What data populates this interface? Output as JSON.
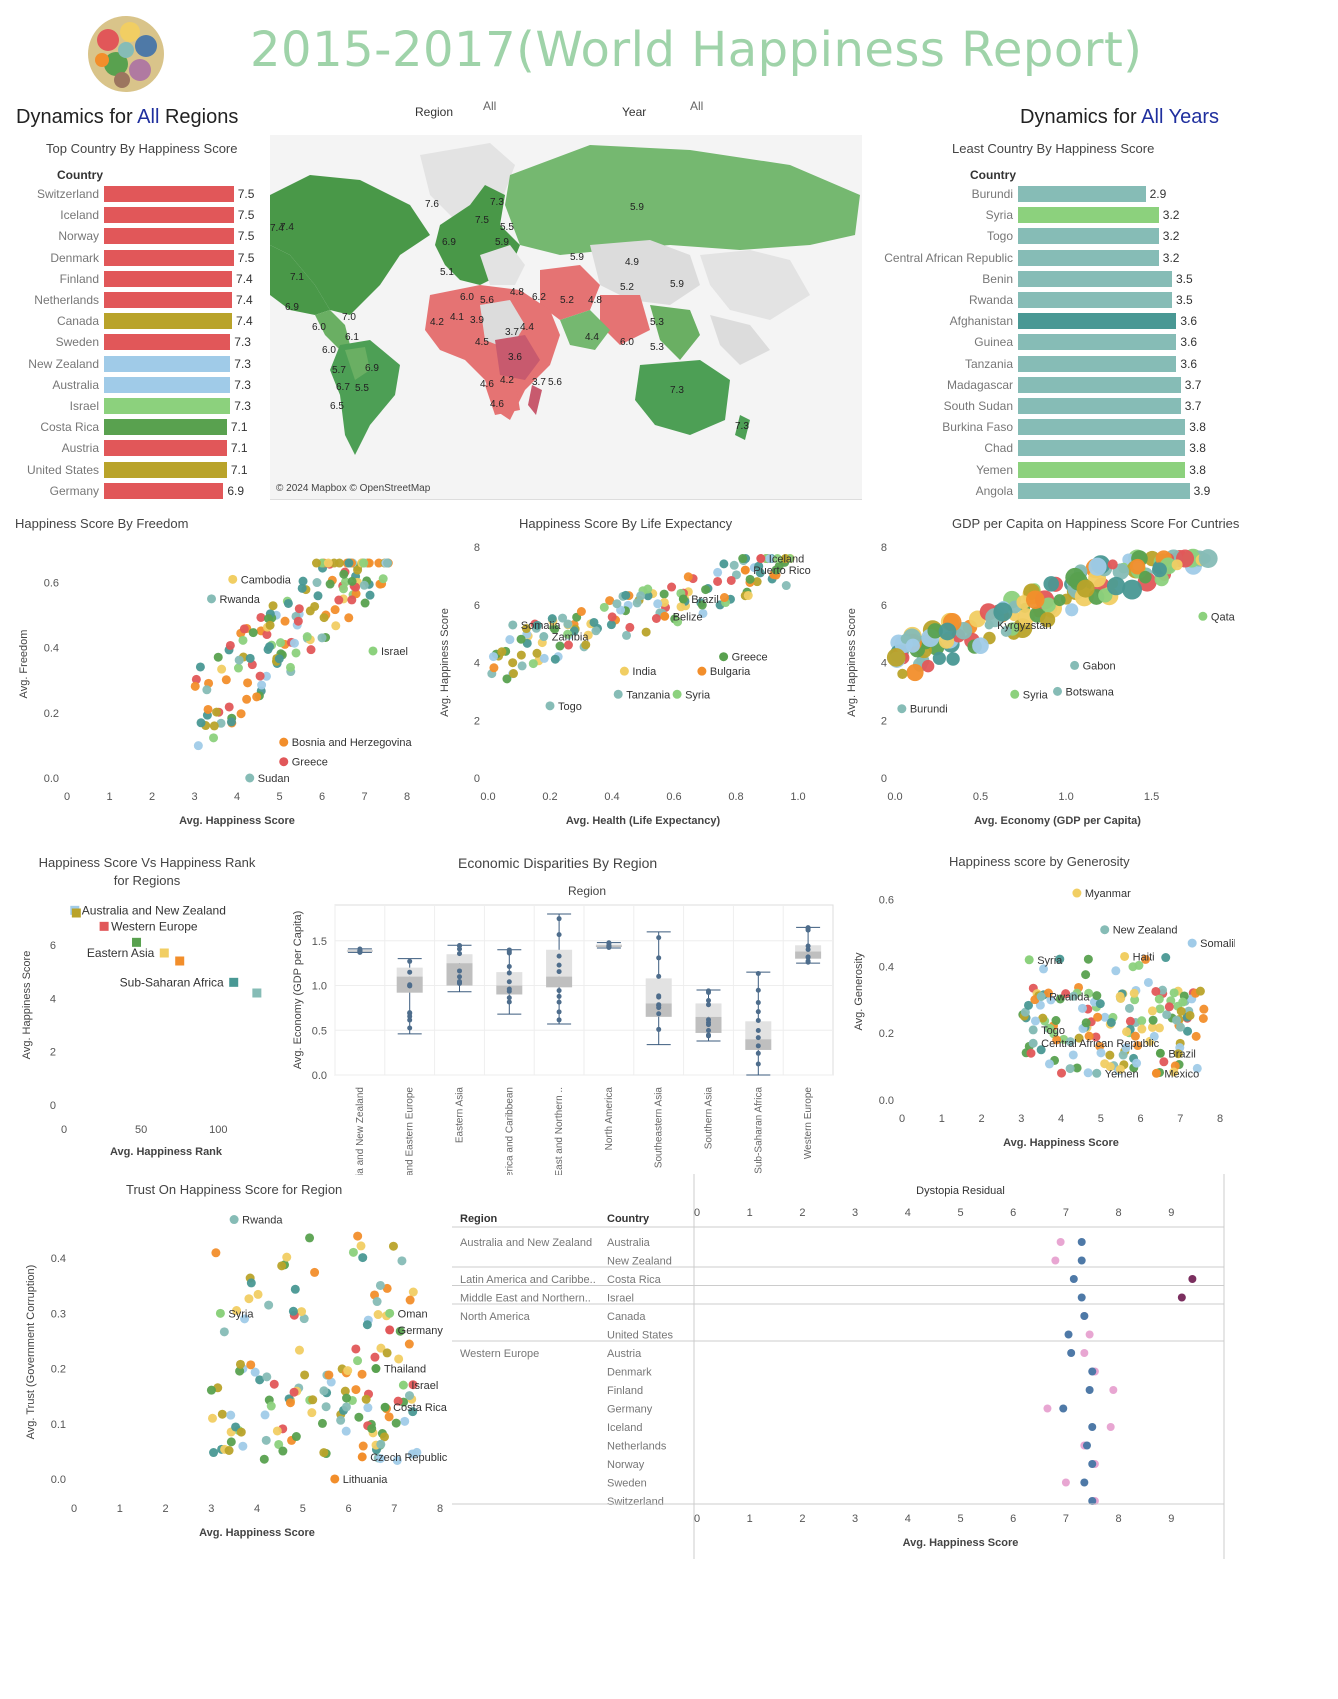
{
  "header": {
    "title": "2015-2017(World Happiness Report)",
    "left_heading_prefix": "Dynamics for ",
    "left_heading_highlight": "All",
    "left_heading_suffix": " Regions",
    "right_heading_prefix": "Dynamics for ",
    "right_heading_highlight": "All Years",
    "region_filter_label": "Region",
    "region_filter_value": "All",
    "year_filter_label": "Year",
    "year_filter_value": "All"
  },
  "colors": {
    "title": "#9fd3a9",
    "highlight": "#1f2f9e",
    "red": "#e15759",
    "gold": "#b9a32a",
    "lightblue": "#a0cbe8",
    "lightgreen": "#8cd17d",
    "green": "#59a14f",
    "teal": "#86bcb6",
    "darkteal": "#499894",
    "orange": "#f28e2b",
    "yellow": "#f1ce63",
    "darkgreen": "#499848"
  },
  "top_countries": {
    "title": "Top Country By Happiness Score",
    "column_header": "Country",
    "rows": [
      {
        "country": "Switzerland",
        "value": 7.5,
        "color": "#e15759"
      },
      {
        "country": "Iceland",
        "value": 7.5,
        "color": "#e15759"
      },
      {
        "country": "Norway",
        "value": 7.5,
        "color": "#e15759"
      },
      {
        "country": "Denmark",
        "value": 7.5,
        "color": "#e15759"
      },
      {
        "country": "Finland",
        "value": 7.4,
        "color": "#e15759"
      },
      {
        "country": "Netherlands",
        "value": 7.4,
        "color": "#e15759"
      },
      {
        "country": "Canada",
        "value": 7.4,
        "color": "#b9a32a"
      },
      {
        "country": "Sweden",
        "value": 7.3,
        "color": "#e15759"
      },
      {
        "country": "New Zealand",
        "value": 7.3,
        "color": "#a0cbe8"
      },
      {
        "country": "Australia",
        "value": 7.3,
        "color": "#a0cbe8"
      },
      {
        "country": "Israel",
        "value": 7.3,
        "color": "#8cd17d"
      },
      {
        "country": "Costa Rica",
        "value": 7.1,
        "color": "#59a14f"
      },
      {
        "country": "Austria",
        "value": 7.1,
        "color": "#e15759"
      },
      {
        "country": "United States",
        "value": 7.1,
        "color": "#b9a32a"
      },
      {
        "country": "Germany",
        "value": 6.9,
        "color": "#e15759"
      }
    ]
  },
  "least_countries": {
    "title": "Least Country By Happiness Score",
    "column_header": "Country",
    "rows": [
      {
        "country": "Burundi",
        "value": 2.9,
        "color": "#86bcb6"
      },
      {
        "country": "Syria",
        "value": 3.2,
        "color": "#8cd17d"
      },
      {
        "country": "Togo",
        "value": 3.2,
        "color": "#86bcb6"
      },
      {
        "country": "Central African Republic",
        "value": 3.2,
        "color": "#86bcb6"
      },
      {
        "country": "Benin",
        "value": 3.5,
        "color": "#86bcb6"
      },
      {
        "country": "Rwanda",
        "value": 3.5,
        "color": "#86bcb6"
      },
      {
        "country": "Afghanistan",
        "value": 3.6,
        "color": "#499894"
      },
      {
        "country": "Guinea",
        "value": 3.6,
        "color": "#86bcb6"
      },
      {
        "country": "Tanzania",
        "value": 3.6,
        "color": "#86bcb6"
      },
      {
        "country": "Madagascar",
        "value": 3.7,
        "color": "#86bcb6"
      },
      {
        "country": "South Sudan",
        "value": 3.7,
        "color": "#86bcb6"
      },
      {
        "country": "Burkina Faso",
        "value": 3.8,
        "color": "#86bcb6"
      },
      {
        "country": "Chad",
        "value": 3.8,
        "color": "#86bcb6"
      },
      {
        "country": "Yemen",
        "value": 3.8,
        "color": "#8cd17d"
      },
      {
        "country": "Angola",
        "value": 3.9,
        "color": "#86bcb6"
      }
    ]
  },
  "map": {
    "attribution": "© 2024 Mapbox © OpenStreetMap",
    "labels": [
      "5.9",
      "7.3",
      "7.4",
      "7.6",
      "7.5",
      "5.5",
      "6.9",
      "5.9",
      "5.9",
      "4.9",
      "5.2",
      "5.9",
      "7.1",
      "6.9",
      "5.1",
      "6.0",
      "5.6",
      "4.8",
      "6.2",
      "5.2",
      "4.8",
      "4.2",
      "4.1",
      "3.9",
      "3.7",
      "4.4",
      "4.4",
      "6.0",
      "5.3",
      "3.6",
      "4.6",
      "4.2",
      "3.7",
      "5.6",
      "4.6",
      "7.3",
      "7.3",
      "6.0",
      "7.0",
      "6.1",
      "6.0",
      "5.7",
      "6.9",
      "6.7",
      "5.5",
      "6.5",
      "7.4",
      "4.5",
      "5.3"
    ]
  },
  "chart_data": [
    {
      "id": "freedom",
      "type": "scatter",
      "title": "Happiness Score By Freedom",
      "xlabel": "Avg. Happiness Score",
      "ylabel": "Avg. Freedom",
      "xlim": [
        0,
        8
      ],
      "ylim": [
        0,
        0.7
      ],
      "xticks": [
        "0",
        "1",
        "2",
        "3",
        "4",
        "5",
        "6",
        "7",
        "8"
      ],
      "yticks": [
        "0.0",
        "0.2",
        "0.4",
        "0.6"
      ],
      "annotations": [
        "Cambodia",
        "Rwanda",
        "Israel",
        "Bosnia and Herzegovina",
        "Greece",
        "Sudan"
      ]
    },
    {
      "id": "life",
      "type": "scatter",
      "title": "Happiness Score By Life Expectancy",
      "xlabel": "Avg. Health (Life Expectancy)",
      "ylabel": "Avg. Happiness Score",
      "xlim": [
        0,
        1.0
      ],
      "ylim": [
        0,
        8
      ],
      "xticks": [
        "0.0",
        "0.2",
        "0.4",
        "0.6",
        "0.8",
        "1.0"
      ],
      "yticks": [
        "0",
        "2",
        "4",
        "6",
        "8"
      ],
      "annotations": [
        "Iceland",
        "Puerto Rico",
        "Brazil",
        "Belize",
        "Somalia",
        "Zambia",
        "Greece",
        "India",
        "Bulgaria",
        "Tanzania",
        "Togo",
        "Syria"
      ]
    },
    {
      "id": "gdp",
      "type": "scatter",
      "title": "GDP per Capita on Happiness Score For Cuntries",
      "xlabel": "Avg. Economy (GDP per Capita)",
      "ylabel": "Avg. Happiness Score",
      "xlim": [
        0,
        1.9
      ],
      "ylim": [
        0,
        8
      ],
      "xticks": [
        "0.0",
        "0.5",
        "1.0",
        "1.5"
      ],
      "yticks": [
        "0",
        "2",
        "4",
        "6",
        "8"
      ],
      "annotations": [
        "Qatar",
        "Kyrgyzstan",
        "Gabon",
        "Botswana",
        "Syria",
        "Burundi"
      ]
    },
    {
      "id": "rank",
      "type": "scatter",
      "title": "Happiness Score Vs Happiness Rank for Regions",
      "xlabel": "Avg. Happiness Rank",
      "ylabel": "Avg. Happiness Score",
      "xlim": [
        0,
        140
      ],
      "ylim": [
        0,
        7.5
      ],
      "xticks": [
        "0",
        "50",
        "100"
      ],
      "yticks": [
        "0",
        "2",
        "4",
        "6"
      ],
      "points": [
        {
          "x": 7,
          "y": 7.3,
          "color": "#a0cbe8",
          "label": "Australia and New Zealand"
        },
        {
          "x": 8,
          "y": 7.2,
          "color": "#b9a32a",
          "label": ""
        },
        {
          "x": 26,
          "y": 6.7,
          "color": "#e15759",
          "label": "Western Europe"
        },
        {
          "x": 47,
          "y": 6.1,
          "color": "#59a14f",
          "label": ""
        },
        {
          "x": 65,
          "y": 5.7,
          "color": "#f1ce63",
          "label": "Eastern Asia"
        },
        {
          "x": 75,
          "y": 5.4,
          "color": "#f28e2b",
          "label": ""
        },
        {
          "x": 110,
          "y": 4.6,
          "color": "#499894",
          "label": "Sub-Saharan Africa"
        },
        {
          "x": 125,
          "y": 4.2,
          "color": "#86bcb6",
          "label": ""
        }
      ]
    },
    {
      "id": "region_box",
      "type": "box",
      "title": "Economic Disparities By Region",
      "column_title": "Region",
      "ylabel": "Avg. Economy (GDP per Capita)",
      "ylim": [
        0,
        1.9
      ],
      "yticks": [
        "0.0",
        "0.5",
        "1.0",
        "1.5"
      ],
      "categories": [
        "Australia and New Zealand",
        "Central and Eastern Europe",
        "Eastern Asia",
        "Latin America and Caribbean",
        "Middle East and Northern ..",
        "North America",
        "Southeastern Asia",
        "Southern Asia",
        "Sub-Saharan Africa",
        "Western Europe"
      ],
      "boxes": [
        {
          "min": 1.37,
          "q1": 1.38,
          "med": 1.39,
          "q3": 1.4,
          "max": 1.41
        },
        {
          "min": 0.46,
          "q1": 0.92,
          "med": 1.1,
          "q3": 1.2,
          "max": 1.3
        },
        {
          "min": 0.93,
          "q1": 1.0,
          "med": 1.25,
          "q3": 1.35,
          "max": 1.45
        },
        {
          "min": 0.68,
          "q1": 0.9,
          "med": 1.0,
          "q3": 1.15,
          "max": 1.4
        },
        {
          "min": 0.57,
          "q1": 0.98,
          "med": 1.1,
          "q3": 1.4,
          "max": 1.8
        },
        {
          "min": 1.42,
          "q1": 1.43,
          "med": 1.45,
          "q3": 1.46,
          "max": 1.48
        },
        {
          "min": 0.34,
          "q1": 0.65,
          "med": 0.8,
          "q3": 1.08,
          "max": 1.6
        },
        {
          "min": 0.38,
          "q1": 0.47,
          "med": 0.65,
          "q3": 0.8,
          "max": 0.95
        },
        {
          "min": 0.0,
          "q1": 0.28,
          "med": 0.4,
          "q3": 0.6,
          "max": 1.15
        },
        {
          "min": 1.25,
          "q1": 1.3,
          "med": 1.38,
          "q3": 1.45,
          "max": 1.65
        }
      ]
    },
    {
      "id": "generosity",
      "type": "scatter",
      "title": "Happiness score by Generosity",
      "xlabel": "Avg. Happiness Score",
      "ylabel": "Avg. Generosity",
      "xlim": [
        0,
        8
      ],
      "ylim": [
        0,
        0.65
      ],
      "xticks": [
        "0",
        "1",
        "2",
        "3",
        "4",
        "5",
        "6",
        "7",
        "8"
      ],
      "yticks": [
        "0.0",
        "0.2",
        "0.4",
        "0.6"
      ],
      "annotations": [
        "Myanmar",
        "New Zealand",
        "Somaliland region",
        "Haiti",
        "Syria",
        "Rwanda",
        "Togo",
        "Central African Republic",
        "Brazil",
        "Yemen",
        "Mexico"
      ]
    },
    {
      "id": "trust",
      "type": "scatter",
      "title": "Trust On Happiness Score for Region",
      "xlabel": "Avg. Happiness Score",
      "ylabel": "Avg. Trust (Government Corruption)",
      "xlim": [
        0,
        8
      ],
      "ylim": [
        -0.02,
        0.48
      ],
      "xticks": [
        "0",
        "1",
        "2",
        "3",
        "4",
        "5",
        "6",
        "7",
        "8"
      ],
      "yticks": [
        "0.0",
        "0.1",
        "0.2",
        "0.3",
        "0.4"
      ],
      "annotations": [
        "Rwanda",
        "Syria",
        "Oman",
        "Germany",
        "Thailand",
        "Israel",
        "Costa Rica",
        "Czech Republic",
        "Lithuania"
      ]
    },
    {
      "id": "dystopia",
      "type": "table",
      "title": "Dystopia Residual",
      "xlabel": "Avg. Happiness Score",
      "region_header": "Region",
      "country_header": "Country",
      "xlim": [
        0,
        10
      ],
      "xticks": [
        "0",
        "1",
        "2",
        "3",
        "4",
        "5",
        "6",
        "7",
        "8",
        "9"
      ],
      "rows": [
        {
          "region": "Australia and New Zealand",
          "country": "Australia",
          "happiness": 7.3,
          "dystopia": 6.9
        },
        {
          "region": "",
          "country": "New Zealand",
          "happiness": 7.3,
          "dystopia": 6.8
        },
        {
          "region": "Latin America and Caribbe..",
          "country": "Costa Rica",
          "happiness": 7.15,
          "dystopia": 9.4
        },
        {
          "region": "Middle East and Northern..",
          "country": "Israel",
          "happiness": 7.3,
          "dystopia": 9.2
        },
        {
          "region": "North America",
          "country": "Canada",
          "happiness": 7.35,
          "dystopia": 7.35
        },
        {
          "region": "",
          "country": "United States",
          "happiness": 7.05,
          "dystopia": 7.45
        },
        {
          "region": "Western Europe",
          "country": "Austria",
          "happiness": 7.1,
          "dystopia": 7.35
        },
        {
          "region": "",
          "country": "Denmark",
          "happiness": 7.5,
          "dystopia": 7.55
        },
        {
          "region": "",
          "country": "Finland",
          "happiness": 7.45,
          "dystopia": 7.9
        },
        {
          "region": "",
          "country": "Germany",
          "happiness": 6.95,
          "dystopia": 6.65
        },
        {
          "region": "",
          "country": "Iceland",
          "happiness": 7.5,
          "dystopia": 7.85
        },
        {
          "region": "",
          "country": "Netherlands",
          "happiness": 7.4,
          "dystopia": 7.35
        },
        {
          "region": "",
          "country": "Norway",
          "happiness": 7.5,
          "dystopia": 7.55
        },
        {
          "region": "",
          "country": "Sweden",
          "happiness": 7.35,
          "dystopia": 7.0
        },
        {
          "region": "",
          "country": "Switzerland",
          "happiness": 7.5,
          "dystopia": 7.55
        }
      ]
    }
  ]
}
